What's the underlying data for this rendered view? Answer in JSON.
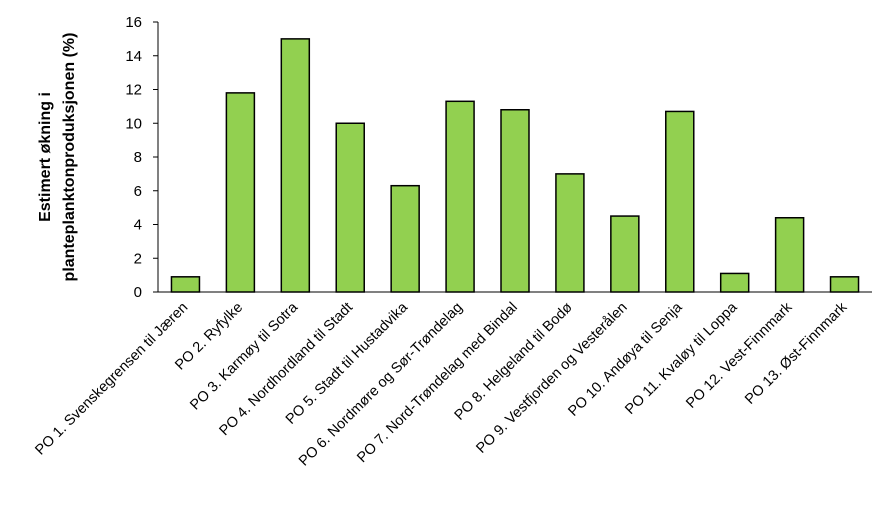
{
  "chart_data": {
    "type": "bar",
    "ylabel_lines": [
      "Estimert økning i",
      "planteplanktonproduksjonen (%)"
    ],
    "ylim": [
      0,
      16
    ],
    "yticks": [
      0,
      2,
      4,
      6,
      8,
      10,
      12,
      14,
      16
    ],
    "grid": false,
    "legend": "none",
    "bar_color": "#92d050",
    "bar_stroke": "#000000",
    "categories": [
      "PO 1. Svenskegrensen til Jæren",
      "PO 2. Ryfylke",
      "PO 3. Karmøy til Sotra",
      "PO 4. Nordhordland til Stadt",
      "PO 5. Stadt til Hustadvika",
      "PO 6. Nordmøre og Sør-Trøndelag",
      "PO 7. Nord-Trøndelag med Bindal",
      "PO 8. Helgeland til Bodø",
      "PO 9. Vestfjorden og Vesterålen",
      "PO 10. Andøya til Senja",
      "PO 11. Kvaløy til Loppa",
      "PO 12. Vest-Finnmark",
      "PO 13. Øst-Finnmark"
    ],
    "values": [
      0.9,
      11.8,
      15.0,
      10.0,
      6.3,
      11.3,
      10.8,
      7.0,
      4.5,
      10.7,
      1.1,
      4.4,
      0.9
    ]
  }
}
